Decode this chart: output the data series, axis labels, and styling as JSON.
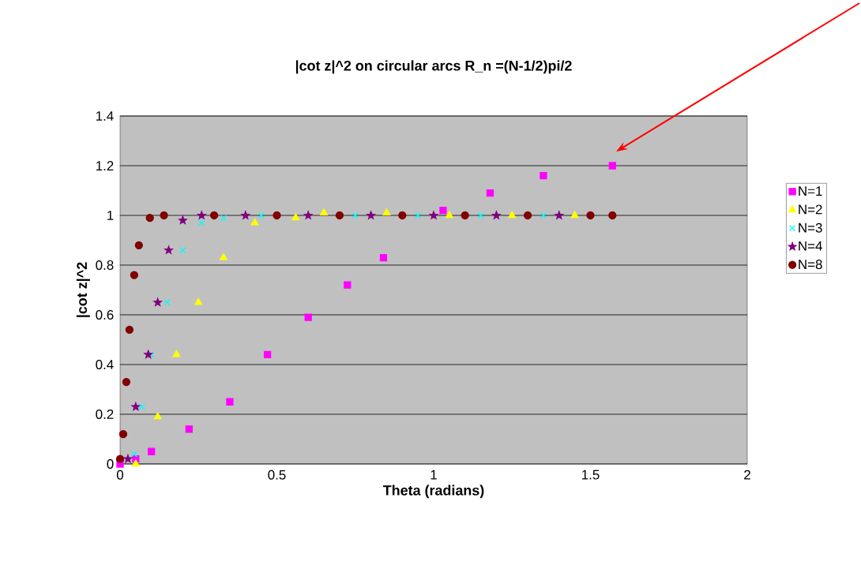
{
  "chart_data": {
    "type": "scatter",
    "title": "|cot z|^2 on circular arcs R_n =(N-1/2)pi/2",
    "xlabel": "Theta (radians)",
    "ylabel": "|cot z|^2",
    "xlim": [
      0,
      2
    ],
    "xticks": [
      0,
      0.5,
      1,
      1.5,
      2
    ],
    "ylim": [
      0,
      1.4
    ],
    "yticks": [
      0,
      0.2,
      0.4,
      0.6,
      0.8,
      1,
      1.2,
      1.4
    ],
    "grid": "y",
    "legend": "right",
    "series": [
      {
        "name": "N=1",
        "color": "#ff00ff",
        "marker": "square",
        "x": [
          0,
          0.05,
          0.1,
          0.22,
          0.35,
          0.47,
          0.6,
          0.725,
          0.84,
          1.03,
          1.18,
          1.35,
          1.57
        ],
        "values": [
          0,
          0.02,
          0.05,
          0.14,
          0.25,
          0.44,
          0.59,
          0.72,
          0.83,
          1.02,
          1.09,
          1.16,
          1.2
        ]
      },
      {
        "name": "N=2",
        "color": "#ffff00",
        "marker": "triangle",
        "x": [
          0.05,
          0.12,
          0.18,
          0.25,
          0.33,
          0.43,
          0.56,
          0.65,
          0.85,
          1.05,
          1.25,
          1.45
        ],
        "values": [
          0,
          0.19,
          0.44,
          0.65,
          0.83,
          0.97,
          0.99,
          1.01,
          1.01,
          1,
          1,
          1
        ]
      },
      {
        "name": "N=3",
        "color": "#00ffff",
        "marker": "cross",
        "x": [
          0.045,
          0.07,
          0.1,
          0.15,
          0.2,
          0.26,
          0.33,
          0.45,
          0.75,
          0.95,
          1.15,
          1.35
        ],
        "values": [
          0.04,
          0.23,
          0.44,
          0.65,
          0.86,
          0.97,
          0.99,
          1,
          1,
          1,
          1,
          1
        ]
      },
      {
        "name": "N=4",
        "color": "#800080",
        "marker": "star",
        "x": [
          0.025,
          0.05,
          0.09,
          0.12,
          0.155,
          0.2,
          0.26,
          0.4,
          0.6,
          0.8,
          1.0,
          1.2,
          1.4
        ],
        "values": [
          0.02,
          0.23,
          0.44,
          0.65,
          0.86,
          0.98,
          1,
          1,
          1,
          1,
          1,
          1,
          1
        ]
      },
      {
        "name": "N=8",
        "color": "#800000",
        "marker": "circle",
        "x": [
          0,
          0.01,
          0.02,
          0.03,
          0.045,
          0.06,
          0.095,
          0.14,
          0.3,
          0.5,
          0.7,
          0.9,
          1.1,
          1.3,
          1.5,
          1.57
        ],
        "values": [
          0.02,
          0.12,
          0.33,
          0.54,
          0.76,
          0.88,
          0.99,
          1,
          1,
          1,
          1,
          1,
          1,
          1,
          1,
          1
        ]
      }
    ]
  }
}
